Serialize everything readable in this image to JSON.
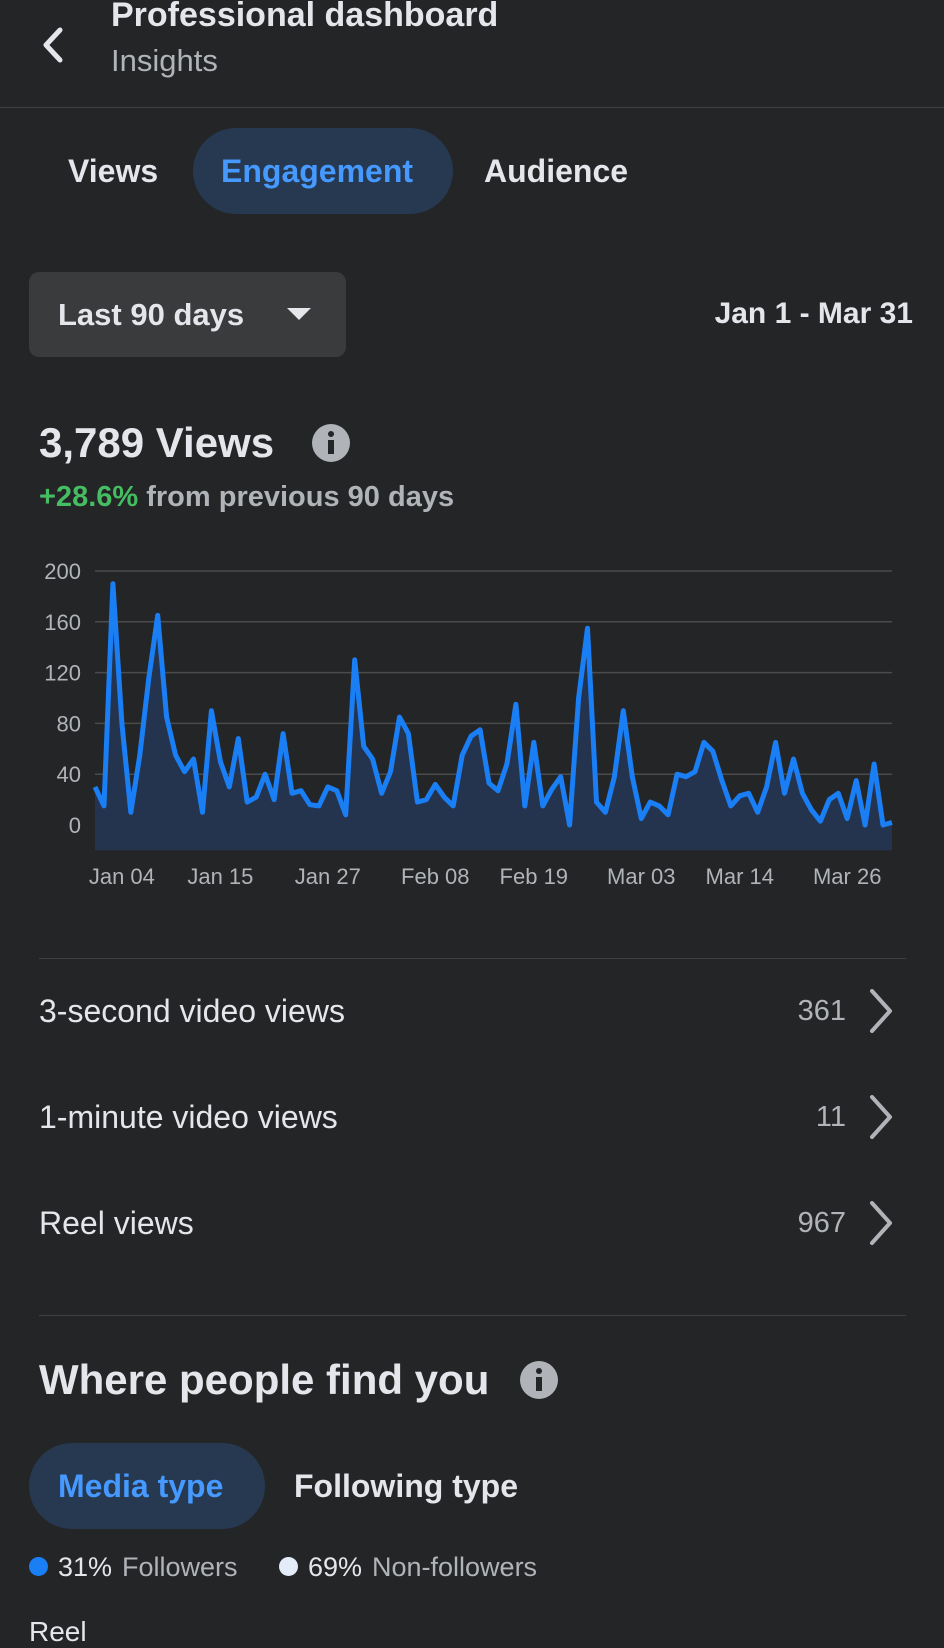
{
  "header": {
    "title": "Professional dashboard",
    "subtitle": "Insights"
  },
  "tabs": [
    "Views",
    "Engagement",
    "Audience"
  ],
  "filter": {
    "period": "Last 90 days",
    "range": "Jan 1 - Mar 31"
  },
  "summary": {
    "total": "3,789 Views",
    "change": "+28.6%",
    "change_text": "from previous 90 days"
  },
  "chart_data": {
    "type": "area",
    "color": "#1a7ef5",
    "fill": "#24344f",
    "grid": true,
    "categories": [
      null,
      null,
      null,
      "Jan 04",
      null,
      null,
      null,
      null,
      null,
      null,
      null,
      null,
      null,
      null,
      "Jan 15",
      null,
      null,
      null,
      null,
      null,
      null,
      null,
      null,
      null,
      null,
      null,
      "Jan 27",
      null,
      null,
      null,
      null,
      null,
      null,
      null,
      null,
      null,
      null,
      null,
      "Feb 08",
      null,
      null,
      null,
      null,
      null,
      null,
      null,
      null,
      null,
      null,
      "Feb 19",
      null,
      null,
      null,
      null,
      null,
      null,
      null,
      null,
      null,
      null,
      null,
      "Mar 03",
      null,
      null,
      null,
      null,
      null,
      null,
      null,
      null,
      null,
      null,
      "Mar 14",
      null,
      null,
      null,
      null,
      null,
      null,
      null,
      null,
      null,
      null,
      null,
      "Mar 26",
      null,
      null,
      null,
      null,
      null
    ],
    "values": [
      30,
      15,
      190,
      80,
      10,
      55,
      115,
      165,
      85,
      55,
      42,
      52,
      10,
      90,
      50,
      30,
      68,
      18,
      22,
      40,
      20,
      72,
      25,
      27,
      16,
      15,
      30,
      27,
      8,
      130,
      62,
      52,
      25,
      42,
      85,
      72,
      18,
      20,
      32,
      22,
      15,
      55,
      70,
      75,
      33,
      27,
      48,
      95,
      15,
      65,
      15,
      28,
      38,
      0,
      100,
      155,
      18,
      10,
      38,
      90,
      38,
      5,
      18,
      15,
      8,
      40,
      38,
      42,
      65,
      58,
      35,
      15,
      23,
      25,
      10,
      30,
      65,
      25,
      52,
      25,
      12,
      3,
      20,
      25,
      5,
      35,
      0,
      48,
      0,
      2
    ],
    "ylim": [
      -20,
      200
    ],
    "yticks": [
      0,
      40,
      80,
      120,
      160,
      200
    ]
  },
  "metrics": [
    {
      "label": "3-second video views",
      "value": 361
    },
    {
      "label": "1-minute video views",
      "value": 11
    },
    {
      "label": "Reel views",
      "value": 967
    }
  ],
  "where": {
    "title": "Where people find you",
    "tabs": [
      "Media type",
      "Following type"
    ],
    "legend": [
      {
        "percent": "31%",
        "label": "Followers",
        "color": "#1a7ef5"
      },
      {
        "percent": "69%",
        "label": "Non-followers",
        "color": "#e4ecfa"
      }
    ],
    "partial": "Reel"
  }
}
